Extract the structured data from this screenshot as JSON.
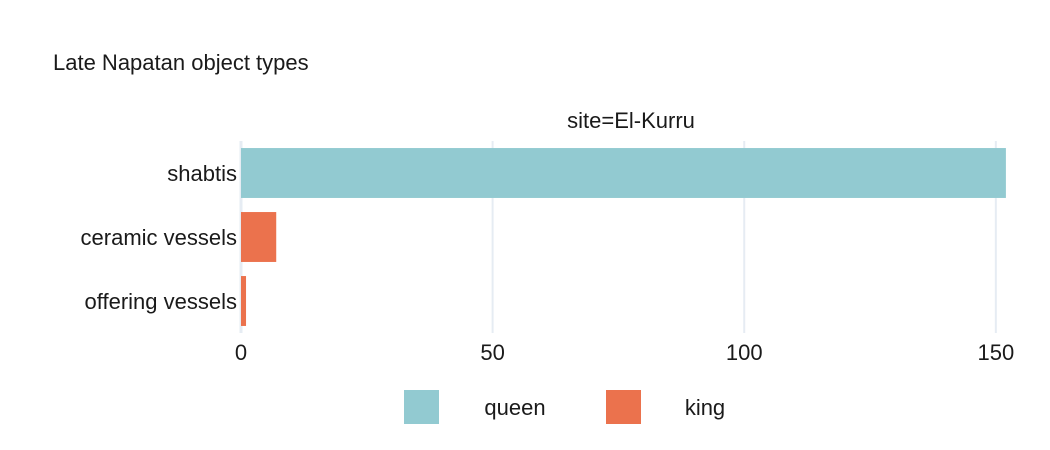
{
  "chart_data": {
    "type": "bar",
    "orientation": "horizontal",
    "title": "Late Napatan object types",
    "facet_label": "site=El-Kurru",
    "categories": [
      "shabtis",
      "ceramic vessels",
      "offering vessels"
    ],
    "series": [
      {
        "name": "queen",
        "color": "#92CAD1",
        "values": [
          152,
          null,
          null
        ]
      },
      {
        "name": "king",
        "color": "#EB724D",
        "values": [
          null,
          7,
          1
        ]
      }
    ],
    "x_ticks": [
      0,
      50,
      100,
      150
    ],
    "xlim": [
      0,
      155
    ],
    "xlabel": "",
    "ylabel": "",
    "grid": true,
    "legend_position": "bottom-center"
  }
}
